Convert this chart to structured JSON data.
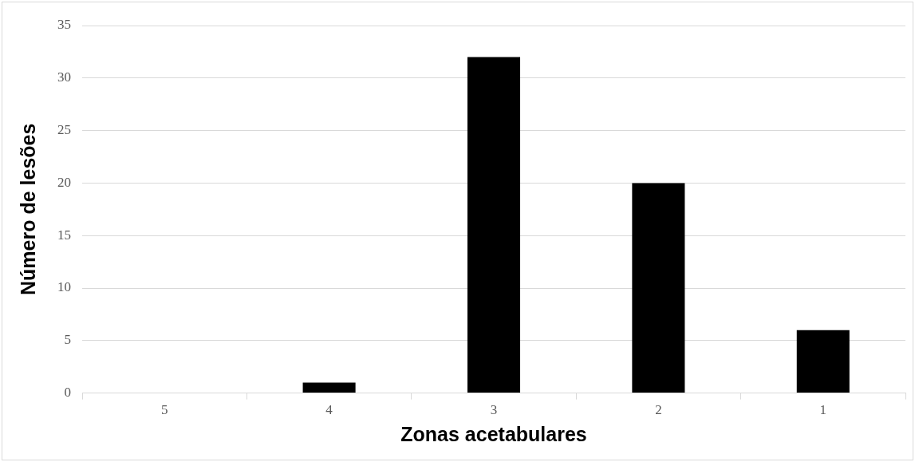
{
  "chart_data": {
    "type": "bar",
    "xlabel": "Zonas acetabulares",
    "ylabel": "Número de lesões",
    "categories": [
      "5",
      "4",
      "3",
      "2",
      "1"
    ],
    "values": [
      0,
      1,
      32,
      20,
      6
    ],
    "color": "#000000",
    "ylim": [
      0,
      35
    ],
    "yticks": [
      0,
      5,
      10,
      15,
      20,
      25,
      30,
      35
    ],
    "grid": "y",
    "legend": false
  }
}
